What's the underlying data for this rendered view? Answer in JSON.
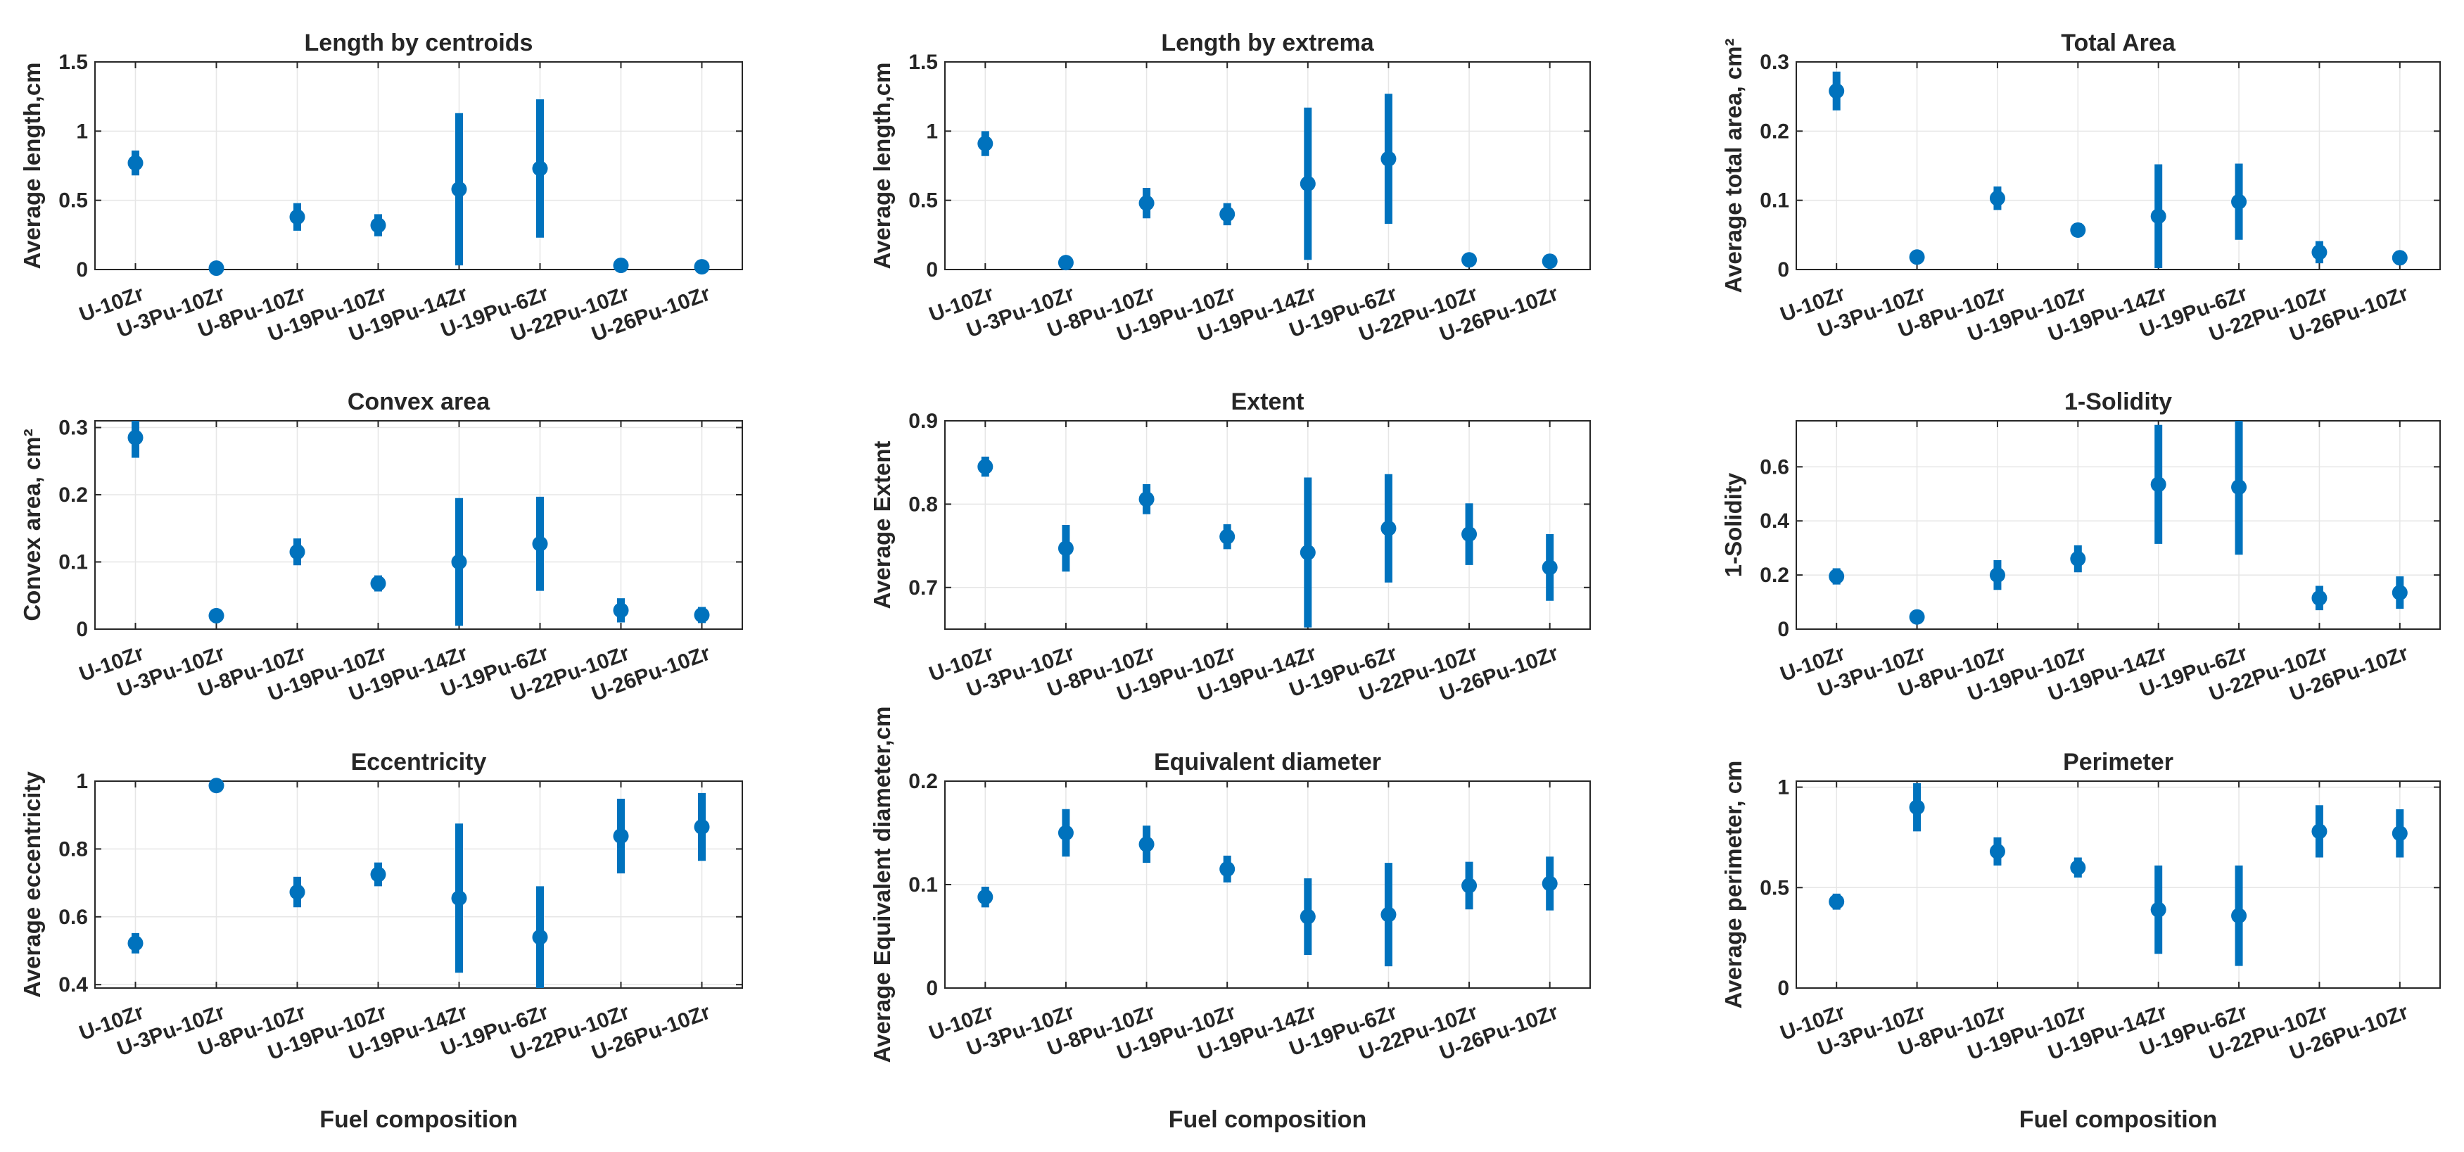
{
  "figure": {
    "xlabel": "Fuel composition"
  },
  "chart_data": [
    {
      "type": "scatter",
      "title": "Length by centroids",
      "ylabel": "Average length,cm",
      "xlabel": "",
      "categories": [
        "U-10Zr",
        "U-3Pu-10Zr",
        "U-8Pu-10Zr",
        "U-19Pu-10Zr",
        "U-19Pu-14Zr",
        "U-19Pu-6Zr",
        "U-22Pu-10Zr",
        "U-26Pu-10Zr"
      ],
      "ylim": [
        0,
        1.5
      ],
      "yticks": [
        0,
        0.5,
        1,
        1.5
      ],
      "ytick_labels": [
        "0",
        "0.5",
        "1",
        "1.5"
      ],
      "values": [
        0.77,
        0.01,
        0.38,
        0.32,
        0.58,
        0.73,
        0.03,
        0.02
      ],
      "errors": [
        0.09,
        0.01,
        0.1,
        0.08,
        0.55,
        0.5,
        0.02,
        0.01
      ],
      "grid": true
    },
    {
      "type": "scatter",
      "title": "Length by extrema",
      "ylabel": "Average length,cm",
      "xlabel": "",
      "categories": [
        "U-10Zr",
        "U-3Pu-10Zr",
        "U-8Pu-10Zr",
        "U-19Pu-10Zr",
        "U-19Pu-14Zr",
        "U-19Pu-6Zr",
        "U-22Pu-10Zr",
        "U-26Pu-10Zr"
      ],
      "ylim": [
        0,
        1.5
      ],
      "yticks": [
        0,
        0.5,
        1,
        1.5
      ],
      "ytick_labels": [
        "0",
        "0.5",
        "1",
        "1.5"
      ],
      "values": [
        0.91,
        0.05,
        0.48,
        0.4,
        0.62,
        0.8,
        0.07,
        0.06
      ],
      "errors": [
        0.09,
        0.02,
        0.11,
        0.08,
        0.55,
        0.47,
        0.03,
        0.02
      ],
      "grid": true
    },
    {
      "type": "scatter",
      "title": "Total Area",
      "ylabel": "Average total area, cm²",
      "xlabel": "",
      "categories": [
        "U-10Zr",
        "U-3Pu-10Zr",
        "U-8Pu-10Zr",
        "U-19Pu-10Zr",
        "U-19Pu-14Zr",
        "U-19Pu-6Zr",
        "U-22Pu-10Zr",
        "U-26Pu-10Zr"
      ],
      "ylim": [
        0,
        0.3
      ],
      "yticks": [
        0,
        0.1,
        0.2,
        0.3
      ],
      "ytick_labels": [
        "0",
        "0.1",
        "0.2",
        "0.3"
      ],
      "values": [
        0.258,
        0.018,
        0.103,
        0.057,
        0.077,
        0.098,
        0.025,
        0.017
      ],
      "errors": [
        0.028,
        0.006,
        0.017,
        0.01,
        0.075,
        0.055,
        0.016,
        0.01
      ],
      "grid": true
    },
    {
      "type": "scatter",
      "title": "Convex area",
      "ylabel": "Convex area, cm²",
      "xlabel": "",
      "categories": [
        "U-10Zr",
        "U-3Pu-10Zr",
        "U-8Pu-10Zr",
        "U-19Pu-10Zr",
        "U-19Pu-14Zr",
        "U-19Pu-6Zr",
        "U-22Pu-10Zr",
        "U-26Pu-10Zr"
      ],
      "ylim": [
        0,
        0.31
      ],
      "yticks": [
        0,
        0.1,
        0.2,
        0.3
      ],
      "ytick_labels": [
        "0",
        "0.1",
        "0.2",
        "0.3"
      ],
      "values": [
        0.285,
        0.02,
        0.115,
        0.068,
        0.1,
        0.127,
        0.028,
        0.021
      ],
      "errors": [
        0.03,
        0.005,
        0.02,
        0.012,
        0.095,
        0.07,
        0.018,
        0.012
      ],
      "grid": true
    },
    {
      "type": "scatter",
      "title": "Extent",
      "ylabel": "Average Extent",
      "xlabel": "",
      "categories": [
        "U-10Zr",
        "U-3Pu-10Zr",
        "U-8Pu-10Zr",
        "U-19Pu-10Zr",
        "U-19Pu-14Zr",
        "U-19Pu-6Zr",
        "U-22Pu-10Zr",
        "U-26Pu-10Zr"
      ],
      "ylim": [
        0.65,
        0.9
      ],
      "yticks": [
        0.7,
        0.8,
        0.9
      ],
      "ytick_labels": [
        "0.7",
        "0.8",
        "0.9"
      ],
      "values": [
        0.845,
        0.747,
        0.806,
        0.761,
        0.742,
        0.771,
        0.764,
        0.724
      ],
      "errors": [
        0.012,
        0.028,
        0.018,
        0.015,
        0.09,
        0.065,
        0.037,
        0.04
      ],
      "grid": true
    },
    {
      "type": "scatter",
      "title": "1-Solidity",
      "ylabel": "1-Solidity",
      "xlabel": "",
      "categories": [
        "U-10Zr",
        "U-3Pu-10Zr",
        "U-8Pu-10Zr",
        "U-19Pu-10Zr",
        "U-19Pu-14Zr",
        "U-19Pu-6Zr",
        "U-22Pu-10Zr",
        "U-26Pu-10Zr"
      ],
      "ylim": [
        0,
        0.77
      ],
      "yticks": [
        0,
        0.2,
        0.4,
        0.6
      ],
      "ytick_labels": [
        "0",
        "0.2",
        "0.4",
        "0.6"
      ],
      "values": [
        0.195,
        0.045,
        0.2,
        0.26,
        0.535,
        0.525,
        0.115,
        0.135
      ],
      "errors": [
        0.03,
        0.02,
        0.055,
        0.05,
        0.22,
        0.25,
        0.045,
        0.06
      ],
      "grid": true
    },
    {
      "type": "scatter",
      "title": "Eccentricity",
      "ylabel": "Average eccentricity",
      "xlabel": "Fuel composition",
      "categories": [
        "U-10Zr",
        "U-3Pu-10Zr",
        "U-8Pu-10Zr",
        "U-19Pu-10Zr",
        "U-19Pu-14Zr",
        "U-19Pu-6Zr",
        "U-22Pu-10Zr",
        "U-26Pu-10Zr"
      ],
      "ylim": [
        0.39,
        1.0
      ],
      "yticks": [
        0.4,
        0.6,
        0.8,
        1
      ],
      "ytick_labels": [
        "0.4",
        "0.6",
        "0.8",
        "1"
      ],
      "values": [
        0.522,
        0.987,
        0.673,
        0.725,
        0.655,
        0.54,
        0.838,
        0.865
      ],
      "errors": [
        0.03,
        0.005,
        0.045,
        0.035,
        0.22,
        0.15,
        0.11,
        0.1
      ],
      "grid": true
    },
    {
      "type": "scatter",
      "title": "Equivalent diameter",
      "ylabel": "Average Equivalent diameter,cm",
      "xlabel": "Fuel composition",
      "categories": [
        "U-10Zr",
        "U-3Pu-10Zr",
        "U-8Pu-10Zr",
        "U-19Pu-10Zr",
        "U-19Pu-14Zr",
        "U-19Pu-6Zr",
        "U-22Pu-10Zr",
        "U-26Pu-10Zr"
      ],
      "ylim": [
        0,
        0.2
      ],
      "yticks": [
        0,
        0.1,
        0.2
      ],
      "ytick_labels": [
        "0",
        "0.1",
        "0.2"
      ],
      "values": [
        0.088,
        0.15,
        0.139,
        0.115,
        0.069,
        0.071,
        0.099,
        0.101
      ],
      "errors": [
        0.01,
        0.023,
        0.018,
        0.013,
        0.037,
        0.05,
        0.023,
        0.026
      ],
      "grid": true
    },
    {
      "type": "scatter",
      "title": "Perimeter",
      "ylabel": "Average perimeter, cm",
      "xlabel": "Fuel composition",
      "categories": [
        "U-10Zr",
        "U-3Pu-10Zr",
        "U-8Pu-10Zr",
        "U-19Pu-10Zr",
        "U-19Pu-14Zr",
        "U-19Pu-6Zr",
        "U-22Pu-10Zr",
        "U-26Pu-10Zr"
      ],
      "ylim": [
        0,
        1.03
      ],
      "yticks": [
        0,
        0.5,
        1
      ],
      "ytick_labels": [
        "0",
        "0.5",
        "1"
      ],
      "values": [
        0.43,
        0.9,
        0.68,
        0.6,
        0.39,
        0.36,
        0.78,
        0.77
      ],
      "errors": [
        0.04,
        0.12,
        0.07,
        0.05,
        0.22,
        0.25,
        0.13,
        0.12
      ],
      "grid": true
    }
  ],
  "colors": {
    "series": "#0072BD",
    "axis": "#262626",
    "grid": "#e6e6e6",
    "text": "#262626",
    "background": "#ffffff"
  }
}
